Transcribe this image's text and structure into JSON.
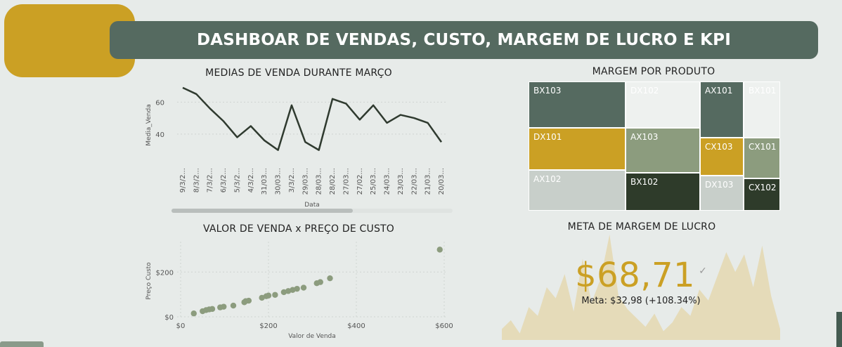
{
  "header": {
    "title": "DASHBOAR DE VENDAS, CUSTO, MARGEM DE LUCRO E KPI"
  },
  "colors": {
    "accent_gold": "#cba024",
    "header": "#556a60",
    "line": "#2f3a2f",
    "scatter": "#8c9c7e",
    "tm_dark": "#556a60",
    "tm_sage": "#8c9c7e",
    "tm_light": "#c8cfca",
    "tm_black": "#2e3b2a"
  },
  "line_chart": {
    "title": "MEDIAS DE VENDA DURANTE MARÇO",
    "xlabel": "Data",
    "ylabel": "Media_Venda",
    "chart_data": {
      "type": "line",
      "x": [
        "9/3/2...",
        "8/3/2...",
        "7/3/2...",
        "6/3/2...",
        "5/3/2...",
        "4/3/2...",
        "31/03...",
        "30/03...",
        "3/3/2...",
        "29/03...",
        "28/03...",
        "28/02...",
        "27/03...",
        "27/02...",
        "25/03...",
        "24/03...",
        "23/03...",
        "22/03...",
        "21/03...",
        "20/03..."
      ],
      "values": [
        69,
        65,
        56,
        48,
        38,
        45,
        36,
        30,
        58,
        35,
        30,
        62,
        59,
        49,
        58,
        47,
        52,
        50,
        47,
        35
      ],
      "yticks": [
        40,
        60
      ],
      "ylim": [
        25,
        72
      ]
    }
  },
  "scatter_chart": {
    "title": "VALOR DE VENDA x PREÇO DE CUSTO",
    "xlabel": "Valor de Venda",
    "ylabel": "Preço Custo",
    "chart_data": {
      "type": "scatter",
      "xticks": [
        "$0",
        "$200",
        "$400",
        "$600"
      ],
      "yticks": [
        "$0",
        "$200"
      ],
      "xlim": [
        0,
        600
      ],
      "ylim": [
        0,
        320
      ],
      "points": [
        [
          30,
          15
        ],
        [
          50,
          25
        ],
        [
          58,
          30
        ],
        [
          65,
          33
        ],
        [
          72,
          35
        ],
        [
          90,
          42
        ],
        [
          98,
          45
        ],
        [
          120,
          50
        ],
        [
          145,
          65
        ],
        [
          148,
          70
        ],
        [
          155,
          72
        ],
        [
          185,
          85
        ],
        [
          195,
          92
        ],
        [
          200,
          95
        ],
        [
          215,
          98
        ],
        [
          235,
          110
        ],
        [
          245,
          115
        ],
        [
          255,
          120
        ],
        [
          265,
          125
        ],
        [
          280,
          130
        ],
        [
          310,
          150
        ],
        [
          318,
          155
        ],
        [
          340,
          172
        ],
        [
          590,
          300
        ]
      ]
    }
  },
  "treemap": {
    "title": "MARGEM POR PRODUTO",
    "cells": [
      {
        "label": "BX103",
        "color": "#556a60",
        "text": "#ffffff"
      },
      {
        "label": "DX102",
        "color": "#eef1ef",
        "text": "#ffffff"
      },
      {
        "label": "AX101",
        "color": "#556a60",
        "text": "#ffffff"
      },
      {
        "label": "BX101",
        "color": "#eef1ef",
        "text": "#ffffff"
      },
      {
        "label": "DX101",
        "color": "#cba024",
        "text": "#ffffff"
      },
      {
        "label": "AX103",
        "color": "#8c9c7e",
        "text": "#ffffff"
      },
      {
        "label": "CX103",
        "color": "#cba024",
        "text": "#ffffff"
      },
      {
        "label": "CX101",
        "color": "#8c9c7e",
        "text": "#ffffff"
      },
      {
        "label": "AX102",
        "color": "#c8cfca",
        "text": "#ffffff"
      },
      {
        "label": "BX102",
        "color": "#2e3b2a",
        "text": "#ffffff"
      },
      {
        "label": "DX103",
        "color": "#c8cfca",
        "text": "#ffffff"
      },
      {
        "label": "CX102",
        "color": "#2e3b2a",
        "text": "#ffffff"
      }
    ]
  },
  "kpi": {
    "title": "META DE MARGEM DE LUCRO",
    "value": "$68,71",
    "check": "✓",
    "meta": "Meta: $32,98 (+108.34%)",
    "trend_values": [
      10,
      18,
      6,
      30,
      22,
      48,
      38,
      60,
      26,
      74,
      34,
      56,
      96,
      40,
      28,
      20,
      12,
      24,
      8,
      16,
      30,
      22,
      46,
      36,
      58,
      80,
      62,
      78,
      48,
      86,
      40,
      10
    ]
  }
}
